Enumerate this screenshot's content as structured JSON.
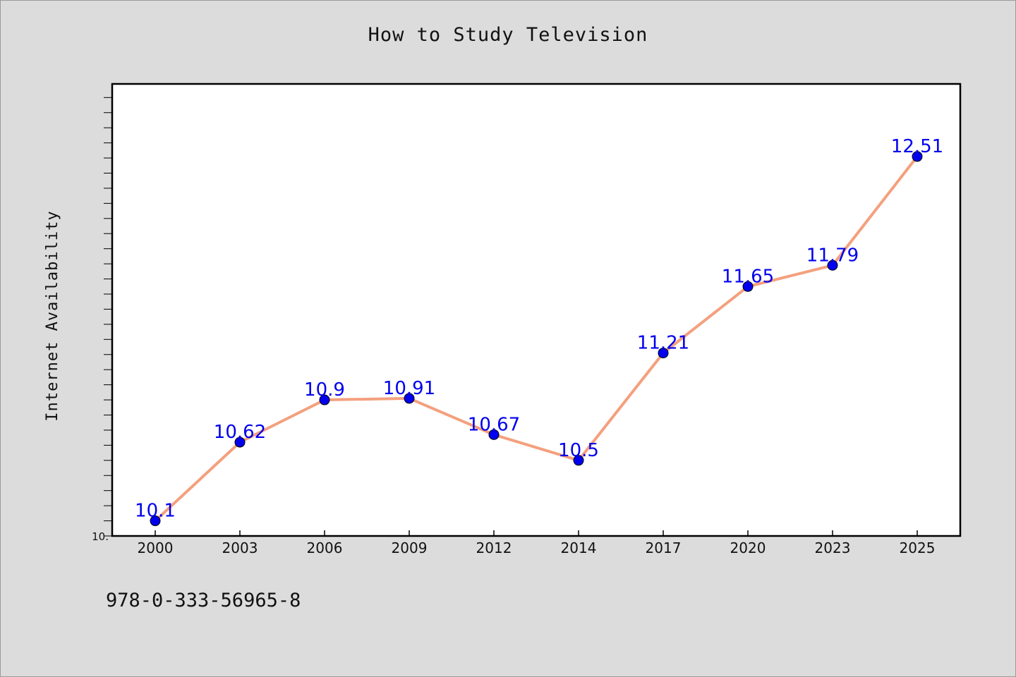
{
  "footer": {
    "isbn": "978-0-333-56965-8"
  },
  "colors": {
    "background": "#dcdcdc",
    "plot_bg": "#ffffff",
    "line": "#f4a07e",
    "marker": "#0000ee",
    "label": "#0000ee"
  },
  "chart_data": {
    "type": "line",
    "title": "How to Study Television",
    "xlabel": "",
    "ylabel": "Internet Availability",
    "categories": [
      "2000",
      "2003",
      "2006",
      "2009",
      "2012",
      "2014",
      "2017",
      "2020",
      "2023",
      "2025"
    ],
    "series": [
      {
        "values": [
          10.1,
          10.62,
          10.9,
          10.91,
          10.67,
          10.5,
          11.21,
          11.65,
          11.79,
          12.51
        ]
      }
    ],
    "data_labels": [
      "10.1",
      "10.62",
      "10.9",
      "10.91",
      "10.67",
      "10.5",
      "11.21",
      "11.65",
      "11.79",
      "12.51"
    ],
    "y_tick_label": "10.",
    "ylim": [
      10.0,
      12.99
    ],
    "grid": false,
    "legend": "none"
  }
}
